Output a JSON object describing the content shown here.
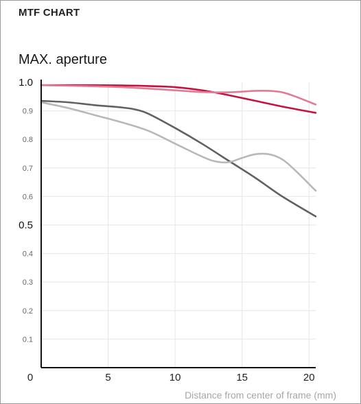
{
  "header": {
    "title": "MTF CHART"
  },
  "chart_data": {
    "type": "line",
    "title": "MAX. aperture",
    "xlabel": "Distance from center of frame (mm)",
    "ylabel": "",
    "xlim": [
      0,
      20.5
    ],
    "ylim": [
      0,
      1.0
    ],
    "x_ticks": [
      0,
      5,
      10,
      15,
      20
    ],
    "y_ticks": [
      0.1,
      0.2,
      0.3,
      0.4,
      0.5,
      0.6,
      0.7,
      0.8,
      0.9,
      1.0
    ],
    "y_tick_labels": [
      "0.1",
      "0.2",
      "0.3",
      "0.4",
      "0.5",
      "0.6",
      "0.7",
      "0.8",
      "0.9",
      "1.0"
    ],
    "grid": true,
    "series": [
      {
        "color": "#c8103e",
        "x": [
          0,
          2,
          4,
          6,
          8,
          10,
          12,
          14,
          16,
          18,
          20.5
        ],
        "y": [
          0.99,
          0.99,
          0.99,
          0.989,
          0.987,
          0.983,
          0.972,
          0.955,
          0.935,
          0.915,
          0.893
        ]
      },
      {
        "color": "#e27a94",
        "x": [
          0,
          2,
          4,
          6,
          8,
          10,
          12,
          14,
          16,
          17,
          18,
          19,
          20.5
        ],
        "y": [
          0.99,
          0.988,
          0.986,
          0.983,
          0.978,
          0.972,
          0.966,
          0.965,
          0.97,
          0.97,
          0.965,
          0.95,
          0.922
        ]
      },
      {
        "color": "#616161",
        "x": [
          0,
          2,
          4,
          6,
          7,
          8,
          10,
          12,
          14,
          16,
          18,
          20.5
        ],
        "y": [
          0.935,
          0.93,
          0.92,
          0.912,
          0.905,
          0.89,
          0.84,
          0.785,
          0.725,
          0.665,
          0.6,
          0.53
        ]
      },
      {
        "color": "#b8b8b8",
        "x": [
          0,
          2,
          4,
          6,
          8,
          10,
          12,
          13,
          14,
          15,
          16,
          17,
          18,
          19,
          20.5
        ],
        "y": [
          0.93,
          0.91,
          0.885,
          0.86,
          0.83,
          0.785,
          0.74,
          0.723,
          0.72,
          0.735,
          0.748,
          0.748,
          0.73,
          0.69,
          0.62
        ]
      }
    ]
  }
}
